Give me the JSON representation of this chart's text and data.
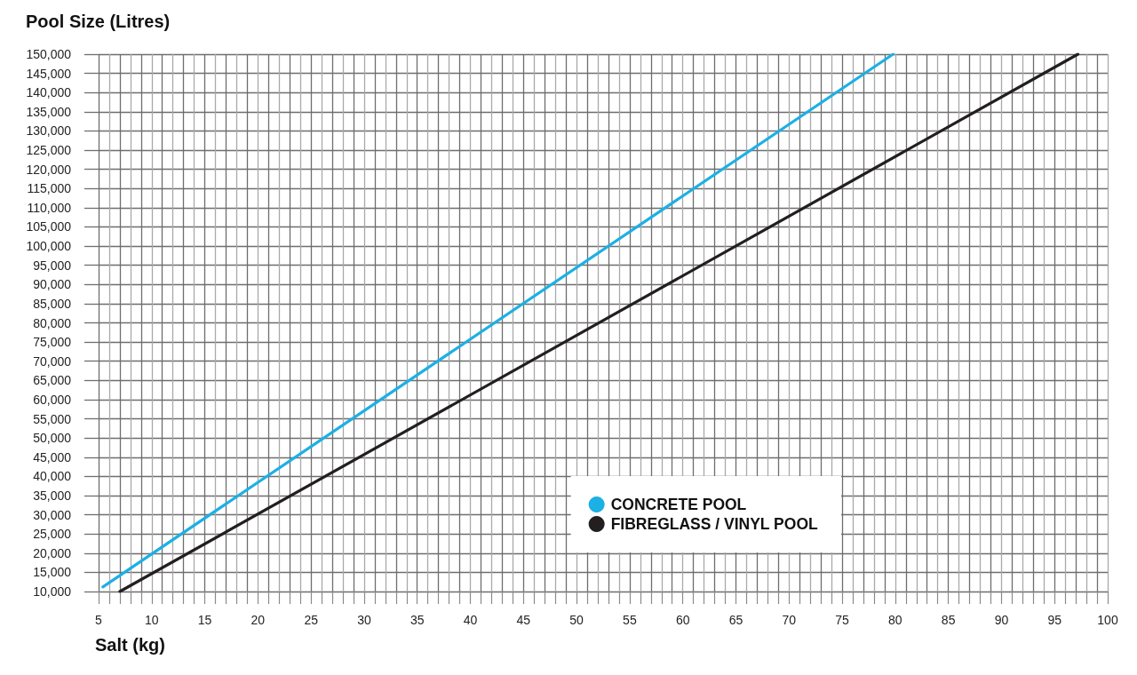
{
  "chart_data": {
    "type": "line",
    "ylabel": "Pool Size (Litres)",
    "xlabel": "Salt (kg)",
    "series": [
      {
        "name": "CONCRETE POOL",
        "color": "#1cb0e5",
        "x": [
          5.4,
          79.8
        ],
        "values": [
          11200,
          150000
        ]
      },
      {
        "name": "FIBREGLASS / VINYL POOL",
        "color": "#231f20",
        "x": [
          7.0,
          97.2
        ],
        "values": [
          10000,
          150000
        ]
      }
    ],
    "xlim": [
      5,
      100
    ],
    "ylim": [
      10000,
      150000
    ],
    "xticks": [
      5,
      {
        "value": 6,
        "label": null
      },
      {
        "value": 7,
        "label": null
      },
      {
        "value": 8,
        "label": null
      },
      {
        "value": 9,
        "label": null
      },
      10,
      {
        "value": 11,
        "label": null
      },
      {
        "value": 12,
        "label": null
      },
      {
        "value": 13,
        "label": null
      },
      {
        "value": 14,
        "label": null
      },
      15,
      {
        "value": 16,
        "label": null
      },
      {
        "value": 17,
        "label": null
      },
      {
        "value": 18,
        "label": null
      },
      {
        "value": 19,
        "label": null
      },
      20,
      {
        "value": 21,
        "label": null
      },
      {
        "value": 22,
        "label": null
      },
      {
        "value": 23,
        "label": null
      },
      {
        "value": 24,
        "label": null
      },
      25,
      {
        "value": 26,
        "label": null
      },
      {
        "value": 27,
        "label": null
      },
      {
        "value": 28,
        "label": null
      },
      {
        "value": 29,
        "label": null
      },
      30,
      {
        "value": 31,
        "label": null
      },
      {
        "value": 32,
        "label": null
      },
      {
        "value": 33,
        "label": null
      },
      {
        "value": 34,
        "label": null
      },
      35,
      {
        "value": 36,
        "label": null
      },
      {
        "value": 37,
        "label": null
      },
      {
        "value": 38,
        "label": null
      },
      {
        "value": 39,
        "label": null
      },
      40,
      {
        "value": 41,
        "label": null
      },
      {
        "value": 42,
        "label": null
      },
      {
        "value": 43,
        "label": null
      },
      {
        "value": 44,
        "label": null
      },
      45,
      {
        "value": 46,
        "label": null
      },
      {
        "value": 47,
        "label": null
      },
      {
        "value": 48,
        "label": null
      },
      {
        "value": 49,
        "label": null
      },
      50,
      {
        "value": 51,
        "label": null
      },
      {
        "value": 52,
        "label": null
      },
      {
        "value": 53,
        "label": null
      },
      {
        "value": 54,
        "label": null
      },
      55,
      {
        "value": 56,
        "label": null
      },
      {
        "value": 57,
        "label": null
      },
      {
        "value": 58,
        "label": null
      },
      {
        "value": 59,
        "label": null
      },
      60,
      {
        "value": 61,
        "label": null
      },
      {
        "value": 62,
        "label": null
      },
      {
        "value": 63,
        "label": null
      },
      {
        "value": 64,
        "label": null
      },
      65,
      {
        "value": 66,
        "label": null
      },
      {
        "value": 67,
        "label": null
      },
      {
        "value": 68,
        "label": null
      },
      {
        "value": 69,
        "label": null
      },
      70,
      {
        "value": 71,
        "label": null
      },
      {
        "value": 72,
        "label": null
      },
      {
        "value": 73,
        "label": null
      },
      {
        "value": 74,
        "label": null
      },
      75,
      {
        "value": 76,
        "label": null
      },
      {
        "value": 77,
        "label": null
      },
      {
        "value": 78,
        "label": null
      },
      {
        "value": 79,
        "label": null
      },
      80,
      {
        "value": 81,
        "label": null
      },
      {
        "value": 82,
        "label": null
      },
      {
        "value": 83,
        "label": null
      },
      {
        "value": 84,
        "label": null
      },
      85,
      {
        "value": 86,
        "label": null
      },
      {
        "value": 87,
        "label": null
      },
      {
        "value": 88,
        "label": null
      },
      {
        "value": 89,
        "label": null
      },
      90,
      {
        "value": 91,
        "label": null
      },
      {
        "value": 92,
        "label": null
      },
      {
        "value": 93,
        "label": null
      },
      {
        "value": 94,
        "label": null
      },
      95,
      {
        "value": 96,
        "label": null
      },
      {
        "value": 97,
        "label": null
      },
      {
        "value": 98,
        "label": null
      },
      {
        "value": 99,
        "label": null
      },
      100
    ],
    "yticks": [
      {
        "value": 10000,
        "label": "10,000"
      },
      {
        "value": 15000,
        "label": "15,000"
      },
      {
        "value": 20000,
        "label": "20,000"
      },
      {
        "value": 25000,
        "label": "25,000"
      },
      {
        "value": 30000,
        "label": "30,000"
      },
      {
        "value": 35000,
        "label": "35,000"
      },
      {
        "value": 40000,
        "label": "40,000"
      },
      {
        "value": 45000,
        "label": "45,000"
      },
      {
        "value": 50000,
        "label": "50,000"
      },
      {
        "value": 55000,
        "label": "55,000"
      },
      {
        "value": 60000,
        "label": "60,000"
      },
      {
        "value": 65000,
        "label": "65,000"
      },
      {
        "value": 70000,
        "label": "70,000"
      },
      {
        "value": 75000,
        "label": "75,000"
      },
      {
        "value": 80000,
        "label": "80,000"
      },
      {
        "value": 85000,
        "label": "85,000"
      },
      {
        "value": 90000,
        "label": "90,000"
      },
      {
        "value": 95000,
        "label": "95,000"
      },
      {
        "value": 100000,
        "label": "100,000"
      },
      {
        "value": 105000,
        "label": "105,000"
      },
      {
        "value": 110000,
        "label": "110,000"
      },
      {
        "value": 115000,
        "label": "115,000"
      },
      {
        "value": 120000,
        "label": "120,000"
      },
      {
        "value": 125000,
        "label": "125,000"
      },
      {
        "value": 130000,
        "label": "130,000"
      },
      {
        "value": 135000,
        "label": "135,000"
      },
      {
        "value": 140000,
        "label": "140,000"
      },
      {
        "value": 145000,
        "label": "145,000"
      },
      {
        "value": 150000,
        "label": "150,000"
      }
    ],
    "grid": true,
    "legend": "bottom right",
    "marker": "none",
    "line_style": "solid"
  }
}
